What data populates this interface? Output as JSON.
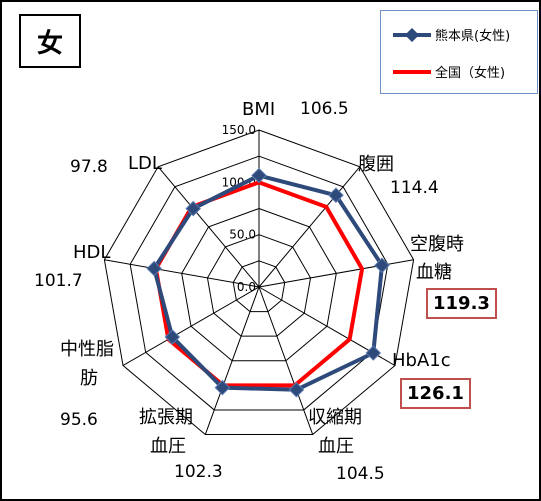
{
  "title": "女",
  "legend": {
    "kumamoto": "熊本県(女性)",
    "national": "全国（女性)"
  },
  "colors": {
    "kumamoto": "#2e4a7a",
    "national": "#ff0000"
  },
  "chart_data": {
    "type": "radar",
    "axes": [
      "BMI",
      "腹囲",
      "空腹時血糖",
      "HbA1c",
      "収縮期血圧",
      "拡張期血圧",
      "中性脂肪",
      "HDL",
      "LDL"
    ],
    "axis_labels": {
      "bmi": "BMI",
      "waist": "腹囲",
      "glucose_1": "空腹時",
      "glucose_2": "血糖",
      "hba1c": "HbA1c",
      "sbp_1": "収縮期",
      "sbp_2": "血圧",
      "dbp_1": "拡張期",
      "dbp_2": "血圧",
      "tg_1": "中性脂",
      "tg_2": "肪",
      "hdl": "HDL",
      "ldl": "LDL"
    },
    "value_labels": {
      "bmi": "106.5",
      "waist": "114.4",
      "glucose": "119.3",
      "hba1c": "126.1",
      "sbp": "104.5",
      "dbp": "102.3",
      "tg": "95.6",
      "hdl": "101.7",
      "ldl": "97.8"
    },
    "rlim": [
      0,
      150
    ],
    "ticks": [
      "0.0",
      "50.0",
      "100.0",
      "150.0"
    ],
    "series": [
      {
        "name": "熊本県(女性)",
        "values": [
          106.5,
          114.4,
          119.3,
          126.1,
          104.5,
          102.3,
          95.6,
          101.7,
          97.8
        ]
      },
      {
        "name": "全国（女性)",
        "values": [
          100,
          100,
          100,
          100,
          100,
          100,
          100,
          100,
          100
        ]
      }
    ]
  }
}
